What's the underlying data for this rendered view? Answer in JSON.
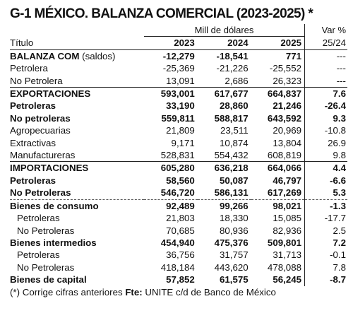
{
  "title": "G-1 MÉXICO. BALANZA COMERCIAL (2023-2025) *",
  "header": {
    "unit": "Mill de dólares",
    "var_label": "Var %",
    "col_title": "Título",
    "years": [
      "2023",
      "2024",
      "2025"
    ],
    "var_period": "25/24"
  },
  "rows": [
    {
      "label_bold": "BALANZA COM",
      "label_rest": " (saldos)",
      "v2023": "-12,279",
      "v2024": "-18,541",
      "v2025": "771",
      "var": "---",
      "bold": true
    },
    {
      "label": "Petrolera",
      "v2023": "-25,369",
      "v2024": "-21,226",
      "v2025": "-25,552",
      "var": "---"
    },
    {
      "label": "No Petrolera",
      "v2023": "13,091",
      "v2024": "2,686",
      "v2025": "26,323",
      "var": "---"
    },
    {
      "label": "EXPORTACIONES",
      "v2023": "593,001",
      "v2024": "617,677",
      "v2025": "664,837",
      "var": "7.6",
      "bold": true
    },
    {
      "label": "Petroleras",
      "v2023": "33,190",
      "v2024": "28,860",
      "v2025": "21,246",
      "var": "-26.4",
      "bold": true
    },
    {
      "label": "No petroleras",
      "v2023": "559,811",
      "v2024": "588,817",
      "v2025": "643,592",
      "var": "9.3",
      "bold": true
    },
    {
      "label": "Agropecuarias",
      "v2023": "21,809",
      "v2024": "23,511",
      "v2025": "20,969",
      "var": "-10.8"
    },
    {
      "label": "Extractivas",
      "v2023": "9,171",
      "v2024": "10,874",
      "v2025": "13,804",
      "var": "26.9"
    },
    {
      "label": "Manufactureras",
      "v2023": "528,831",
      "v2024": "554,432",
      "v2025": "608,819",
      "var": "9.8"
    },
    {
      "label": "IMPORTACIONES",
      "v2023": "605,280",
      "v2024": "636,218",
      "v2025": "664,066",
      "var": "4.4",
      "bold": true
    },
    {
      "label": "Petroleras",
      "v2023": "58,560",
      "v2024": "50,087",
      "v2025": "46,797",
      "var": "-6.6",
      "bold": true
    },
    {
      "label": "No Petroleras",
      "v2023": "546,720",
      "v2024": "586,131",
      "v2025": "617,269",
      "var": "5.3",
      "bold": true
    },
    {
      "label": "Bienes de consumo",
      "v2023": "92,489",
      "v2024": "99,266",
      "v2025": "98,021",
      "var": "-1.3",
      "bold": true
    },
    {
      "label": "Petroleras",
      "v2023": "21,803",
      "v2024": "18,330",
      "v2025": "15,085",
      "var": "-17.7",
      "indent": true
    },
    {
      "label": "No Petroleras",
      "v2023": "70,685",
      "v2024": "80,936",
      "v2025": "82,936",
      "var": "2.5",
      "indent": true
    },
    {
      "label": "Bienes intermedios",
      "v2023": "454,940",
      "v2024": "475,376",
      "v2025": "509,801",
      "var": "7.2",
      "bold": true
    },
    {
      "label": "Petroleras",
      "v2023": "36,756",
      "v2024": "31,757",
      "v2025": "31,713",
      "var": "-0.1",
      "indent": true
    },
    {
      "label": "No Petroleras",
      "v2023": "418,184",
      "v2024": "443,620",
      "v2025": "478,088",
      "var": "7.8",
      "indent": true
    },
    {
      "label": "Bienes de capital",
      "v2023": "57,852",
      "v2024": "61,575",
      "v2025": "56,245",
      "var": "-8.7",
      "bold": true
    }
  ],
  "footer": {
    "note": "(*) Corrige cifras anteriores",
    "source_label": "Fte:",
    "source_text": " UNITE c/d de Banco de México"
  }
}
